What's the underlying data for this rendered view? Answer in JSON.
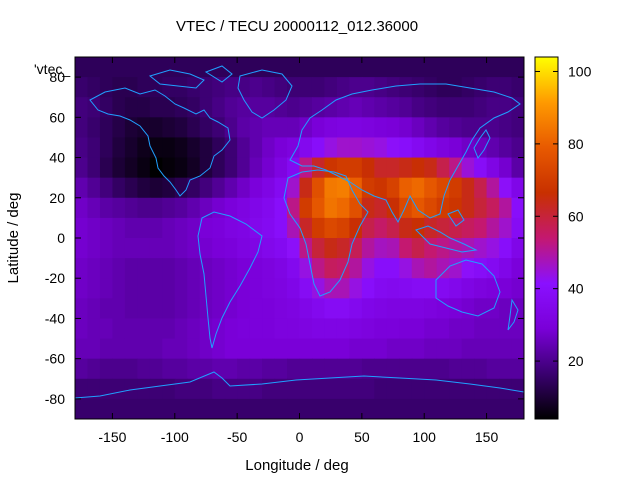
{
  "chart_data": {
    "type": "heatmap",
    "title": "VTEC / TECU 20000112_012.36000",
    "xlabel": "Longitude / deg",
    "ylabel": "Latitude / deg",
    "key_label": "'vtec_",
    "xlim": [
      -180,
      180
    ],
    "ylim": [
      -90,
      90
    ],
    "x_ticks": [
      -150,
      -100,
      -50,
      0,
      50,
      100,
      150
    ],
    "y_ticks": [
      -80,
      -60,
      -40,
      -20,
      0,
      20,
      40,
      60,
      80
    ],
    "colorbar": {
      "range": [
        4,
        104
      ],
      "ticks": [
        20,
        40,
        60,
        80,
        100
      ],
      "palette": [
        "#000000",
        "#3a0070",
        "#7a00d8",
        "#8a10ff",
        "#c41870",
        "#c83000",
        "#e85a00",
        "#ff9a00",
        "#ffff00"
      ]
    },
    "grid": false,
    "cells": {
      "lon_step": 10,
      "lat_step": 10,
      "lons": [
        -175,
        -165,
        -155,
        -145,
        -135,
        -125,
        -115,
        -105,
        -95,
        -85,
        -75,
        -65,
        -55,
        -45,
        -35,
        -25,
        -15,
        -5,
        5,
        15,
        25,
        35,
        45,
        55,
        65,
        75,
        85,
        95,
        105,
        115,
        125,
        135,
        145,
        155,
        165,
        175
      ],
      "lats": [
        85,
        75,
        65,
        55,
        45,
        35,
        25,
        15,
        5,
        -5,
        -15,
        -25,
        -35,
        -45,
        -55,
        -65,
        -75,
        -85
      ],
      "vtec": [
        [
          14,
          14,
          14,
          14,
          14,
          14,
          14,
          14,
          14,
          14,
          14,
          14,
          14,
          14,
          14,
          14,
          14,
          14,
          14,
          14,
          14,
          14,
          14,
          14,
          14,
          14,
          14,
          14,
          14,
          14,
          14,
          14,
          14,
          14,
          14,
          14
        ],
        [
          16,
          15,
          14,
          13,
          13,
          14,
          14,
          15,
          15,
          16,
          17,
          18,
          19,
          19,
          20,
          19,
          18,
          17,
          17,
          17,
          18,
          19,
          20,
          20,
          19,
          18,
          17,
          16,
          15,
          14,
          14,
          15,
          16,
          17,
          17,
          16
        ],
        [
          18,
          17,
          15,
          13,
          12,
          12,
          13,
          13,
          14,
          15,
          17,
          19,
          21,
          22,
          22,
          22,
          21,
          20,
          21,
          22,
          23,
          24,
          25,
          24,
          23,
          22,
          21,
          19,
          18,
          17,
          17,
          17,
          18,
          19,
          19,
          18
        ],
        [
          18,
          16,
          14,
          12,
          10,
          9,
          9,
          10,
          11,
          13,
          15,
          17,
          20,
          23,
          24,
          25,
          25,
          25,
          27,
          29,
          31,
          32,
          32,
          31,
          30,
          29,
          28,
          26,
          24,
          22,
          21,
          20,
          20,
          20,
          19,
          18
        ],
        [
          19,
          17,
          14,
          11,
          9,
          7,
          6,
          6,
          7,
          9,
          11,
          14,
          17,
          21,
          24,
          27,
          29,
          31,
          36,
          40,
          44,
          46,
          46,
          45,
          44,
          42,
          40,
          37,
          34,
          31,
          29,
          27,
          26,
          24,
          22,
          20
        ],
        [
          20,
          17,
          13,
          10,
          8,
          6,
          4,
          5,
          6,
          8,
          11,
          14,
          17,
          21,
          25,
          28,
          32,
          37,
          52,
          62,
          68,
          70,
          70,
          66,
          62,
          62,
          64,
          66,
          64,
          58,
          52,
          45,
          39,
          33,
          28,
          23
        ],
        [
          24,
          21,
          18,
          15,
          13,
          11,
          10,
          11,
          13,
          15,
          18,
          21,
          24,
          27,
          30,
          33,
          37,
          46,
          64,
          76,
          85,
          86,
          80,
          70,
          68,
          72,
          80,
          82,
          78,
          74,
          70,
          64,
          58,
          50,
          42,
          34
        ],
        [
          27,
          25,
          23,
          22,
          21,
          20,
          20,
          21,
          22,
          24,
          26,
          28,
          30,
          32,
          34,
          36,
          40,
          52,
          70,
          78,
          84,
          82,
          76,
          64,
          62,
          66,
          74,
          78,
          74,
          70,
          68,
          64,
          60,
          56,
          50,
          40
        ],
        [
          28,
          27,
          26,
          25,
          24,
          24,
          24,
          25,
          26,
          27,
          29,
          30,
          32,
          33,
          35,
          37,
          40,
          48,
          62,
          70,
          74,
          72,
          66,
          58,
          55,
          58,
          64,
          66,
          62,
          60,
          58,
          56,
          54,
          50,
          46,
          38
        ],
        [
          28,
          27,
          26,
          25,
          25,
          25,
          25,
          25,
          26,
          27,
          28,
          29,
          30,
          32,
          33,
          35,
          37,
          42,
          52,
          60,
          64,
          62,
          57,
          50,
          47,
          48,
          54,
          58,
          54,
          52,
          50,
          48,
          46,
          44,
          40,
          34
        ],
        [
          27,
          26,
          25,
          24,
          23,
          23,
          23,
          23,
          24,
          25,
          26,
          27,
          28,
          29,
          30,
          31,
          33,
          36,
          44,
          52,
          56,
          55,
          50,
          44,
          40,
          40,
          44,
          48,
          50,
          48,
          46,
          42,
          39,
          37,
          34,
          30
        ],
        [
          27,
          26,
          25,
          24,
          23,
          23,
          23,
          23,
          24,
          25,
          26,
          27,
          28,
          29,
          30,
          31,
          32,
          34,
          38,
          44,
          48,
          48,
          44,
          40,
          37,
          36,
          37,
          38,
          38,
          37,
          35,
          33,
          31,
          30,
          29,
          28
        ],
        [
          26,
          25,
          24,
          24,
          23,
          23,
          23,
          23,
          24,
          25,
          26,
          27,
          28,
          29,
          30,
          30,
          31,
          32,
          34,
          36,
          38,
          38,
          36,
          34,
          33,
          32,
          32,
          32,
          31,
          30,
          29,
          28,
          27,
          27,
          26,
          26
        ],
        [
          26,
          25,
          25,
          24,
          24,
          24,
          24,
          24,
          25,
          26,
          27,
          28,
          29,
          30,
          30,
          30,
          31,
          31,
          32,
          33,
          33,
          33,
          32,
          31,
          30,
          30,
          29,
          29,
          28,
          28,
          27,
          27,
          26,
          26,
          26,
          26
        ],
        [
          25,
          25,
          24,
          24,
          24,
          24,
          24,
          25,
          25,
          26,
          27,
          28,
          29,
          29,
          29,
          29,
          29,
          29,
          29,
          29,
          29,
          29,
          28,
          28,
          28,
          27,
          27,
          27,
          26,
          26,
          26,
          25,
          25,
          25,
          25,
          25
        ],
        [
          22,
          21,
          20,
          20,
          20,
          21,
          21,
          22,
          22,
          23,
          23,
          24,
          24,
          23,
          23,
          22,
          22,
          21,
          21,
          21,
          21,
          21,
          21,
          20,
          20,
          20,
          20,
          20,
          20,
          20,
          21,
          21,
          21,
          22,
          22,
          22
        ],
        [
          17,
          17,
          17,
          17,
          17,
          17,
          17,
          17,
          18,
          18,
          18,
          19,
          19,
          19,
          19,
          18,
          18,
          18,
          18,
          18,
          18,
          18,
          18,
          18,
          17,
          17,
          17,
          17,
          17,
          17,
          17,
          17,
          17,
          17,
          17,
          17
        ],
        [
          16,
          16,
          16,
          16,
          16,
          16,
          16,
          16,
          16,
          16,
          16,
          16,
          16,
          16,
          16,
          16,
          16,
          16,
          16,
          16,
          16,
          16,
          16,
          16,
          16,
          16,
          16,
          16,
          16,
          16,
          16,
          16,
          16,
          16,
          16,
          16
        ]
      ]
    }
  }
}
